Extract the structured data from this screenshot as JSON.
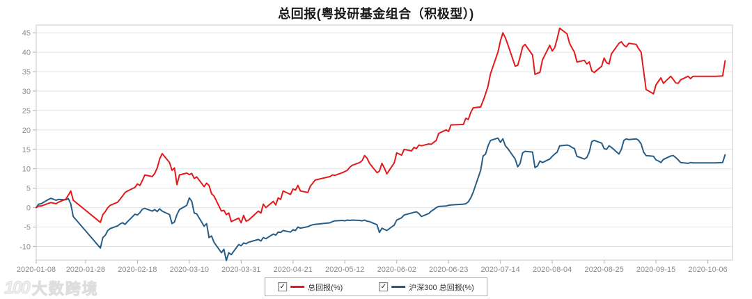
{
  "title": "总回报(粤投研基金组合（积极型）)",
  "watermark": {
    "logo": "100",
    "text": "大数跨境"
  },
  "legend": [
    {
      "label": "总回报(%)",
      "color": "#e31a1c",
      "checked": true,
      "check_glyph": "✓"
    },
    {
      "label": "沪深300 总回报(%)",
      "color": "#265d87",
      "checked": true,
      "check_glyph": "✓"
    }
  ],
  "colors": {
    "plot_border": "#c9c9c9",
    "gridline": "#e2e2e2",
    "tick": "#b0b0b0",
    "axis_label": "#8c8c8c",
    "background": "#ffffff"
  },
  "chart_data": {
    "type": "line",
    "title": "总回报(粤投研基金组合（积极型）)",
    "xlabel": "",
    "ylabel": "",
    "grid": "horizontal-only",
    "legend_position": "bottom-center",
    "x_axis": {
      "kind": "time",
      "start": "2020-01-08",
      "end": "2020-10-16",
      "tick_labels": [
        "2020-01-08",
        "2020-01-28",
        "2020-02-18",
        "2020-03-10",
        "2020-03-31",
        "2020-04-21",
        "2020-05-12",
        "2020-06-02",
        "2020-06-23",
        "2020-07-14",
        "2020-08-04",
        "2020-08-25",
        "2020-09-15",
        "2020-10-06"
      ]
    },
    "y_axis": {
      "min": -13.5,
      "max": 47,
      "ticks": [
        45,
        40,
        35,
        30,
        25,
        20,
        15,
        10,
        5,
        0,
        -5,
        -10
      ]
    },
    "dates": [
      "2020-01-08",
      "2020-01-09",
      "2020-01-10",
      "2020-01-13",
      "2020-01-14",
      "2020-01-16",
      "2020-01-17",
      "2020-01-20",
      "2020-01-21",
      "2020-01-22",
      "2020-01-23",
      "2020-02-03",
      "2020-02-04",
      "2020-02-05",
      "2020-02-06",
      "2020-02-07",
      "2020-02-10",
      "2020-02-11",
      "2020-02-12",
      "2020-02-13",
      "2020-02-14",
      "2020-02-17",
      "2020-02-18",
      "2020-02-19",
      "2020-02-20",
      "2020-02-21",
      "2020-02-24",
      "2020-02-25",
      "2020-02-26",
      "2020-02-27",
      "2020-02-28",
      "2020-03-02",
      "2020-03-03",
      "2020-03-04",
      "2020-03-05",
      "2020-03-06",
      "2020-03-09",
      "2020-03-10",
      "2020-03-11",
      "2020-03-12",
      "2020-03-13",
      "2020-03-16",
      "2020-03-17",
      "2020-03-18",
      "2020-03-19",
      "2020-03-20",
      "2020-03-23",
      "2020-03-24",
      "2020-03-25",
      "2020-03-26",
      "2020-03-27",
      "2020-03-30",
      "2020-03-31",
      "2020-04-01",
      "2020-04-02",
      "2020-04-03",
      "2020-04-07",
      "2020-04-08",
      "2020-04-09",
      "2020-04-10",
      "2020-04-13",
      "2020-04-14",
      "2020-04-15",
      "2020-04-16",
      "2020-04-17",
      "2020-04-20",
      "2020-04-21",
      "2020-04-22",
      "2020-04-23",
      "2020-04-24",
      "2020-04-27",
      "2020-04-28",
      "2020-04-29",
      "2020-04-30",
      "2020-05-06",
      "2020-05-07",
      "2020-05-08",
      "2020-05-11",
      "2020-05-12",
      "2020-05-13",
      "2020-05-14",
      "2020-05-15",
      "2020-05-18",
      "2020-05-19",
      "2020-05-20",
      "2020-05-21",
      "2020-05-22",
      "2020-05-25",
      "2020-05-26",
      "2020-05-27",
      "2020-05-28",
      "2020-05-29",
      "2020-06-01",
      "2020-06-02",
      "2020-06-03",
      "2020-06-04",
      "2020-06-05",
      "2020-06-08",
      "2020-06-09",
      "2020-06-10",
      "2020-06-11",
      "2020-06-12",
      "2020-06-15",
      "2020-06-16",
      "2020-06-17",
      "2020-06-18",
      "2020-06-19",
      "2020-06-22",
      "2020-06-23",
      "2020-06-24",
      "2020-06-29",
      "2020-06-30",
      "2020-07-01",
      "2020-07-02",
      "2020-07-03",
      "2020-07-06",
      "2020-07-07",
      "2020-07-08",
      "2020-07-09",
      "2020-07-10",
      "2020-07-13",
      "2020-07-14",
      "2020-07-15",
      "2020-07-16",
      "2020-07-17",
      "2020-07-20",
      "2020-07-21",
      "2020-07-22",
      "2020-07-23",
      "2020-07-24",
      "2020-07-27",
      "2020-07-28",
      "2020-07-29",
      "2020-07-30",
      "2020-07-31",
      "2020-08-03",
      "2020-08-04",
      "2020-08-05",
      "2020-08-06",
      "2020-08-07",
      "2020-08-10",
      "2020-08-11",
      "2020-08-12",
      "2020-08-13",
      "2020-08-14",
      "2020-08-17",
      "2020-08-18",
      "2020-08-19",
      "2020-08-20",
      "2020-08-21",
      "2020-08-24",
      "2020-08-25",
      "2020-08-26",
      "2020-08-27",
      "2020-08-28",
      "2020-08-31",
      "2020-09-01",
      "2020-09-02",
      "2020-09-03",
      "2020-09-04",
      "2020-09-07",
      "2020-09-08",
      "2020-09-09",
      "2020-09-10",
      "2020-09-11",
      "2020-09-14",
      "2020-09-15",
      "2020-09-16",
      "2020-09-17",
      "2020-09-18",
      "2020-09-21",
      "2020-09-22",
      "2020-09-23",
      "2020-09-24",
      "2020-09-25",
      "2020-09-28",
      "2020-09-29",
      "2020-09-30",
      "2020-10-09",
      "2020-10-12",
      "2020-10-13"
    ],
    "series": [
      {
        "name": "总回报(%)",
        "color": "#e31a1c",
        "width": 2,
        "values": [
          0.0,
          0.4,
          0.4,
          1.1,
          1.3,
          1.0,
          1.4,
          2.2,
          3.2,
          4.3,
          1.9,
          -3.8,
          -1.8,
          -1.0,
          0.0,
          0.6,
          1.4,
          2.2,
          3.0,
          3.9,
          4.3,
          5.2,
          6.1,
          5.7,
          7.0,
          8.4,
          8.0,
          8.8,
          10.2,
          12.5,
          13.9,
          11.6,
          9.6,
          10.2,
          5.9,
          8.4,
          8.9,
          8.5,
          8.8,
          7.5,
          7.9,
          5.4,
          6.3,
          5.7,
          3.6,
          3.0,
          -0.9,
          -0.7,
          -1.8,
          -1.4,
          -3.6,
          -2.7,
          -3.9,
          -2.0,
          -3.5,
          -3.2,
          -0.9,
          -1.4,
          0.9,
          0.0,
          1.6,
          0.7,
          2.5,
          2.1,
          4.3,
          3.4,
          4.8,
          4.5,
          5.7,
          4.3,
          3.9,
          5.5,
          6.3,
          7.1,
          8.0,
          8.4,
          8.3,
          9.0,
          9.3,
          9.6,
          10.4,
          10.9,
          11.6,
          12.1,
          13.4,
          12.7,
          11.4,
          9.0,
          9.4,
          11.4,
          10.2,
          8.7,
          11.5,
          14.1,
          13.8,
          13.5,
          15.0,
          14.6,
          15.5,
          15.2,
          16.1,
          15.9,
          16.4,
          16.3,
          16.8,
          17.3,
          19.1,
          20.0,
          19.6,
          21.3,
          21.4,
          23.0,
          22.7,
          24.5,
          25.7,
          25.9,
          27.5,
          29.3,
          31.3,
          34.5,
          40.0,
          42.9,
          45.0,
          43.7,
          42.0,
          36.4,
          36.6,
          38.8,
          41.4,
          42.0,
          39.3,
          34.3,
          34.6,
          34.8,
          38.0,
          41.8,
          40.3,
          41.2,
          43.5,
          46.2,
          44.7,
          42.3,
          41.1,
          40.0,
          37.5,
          37.9,
          37.0,
          37.5,
          35.2,
          34.8,
          36.4,
          38.5,
          37.3,
          37.0,
          39.6,
          42.3,
          42.7,
          41.8,
          41.4,
          42.3,
          42.0,
          40.9,
          40.0,
          35.2,
          30.4,
          29.3,
          31.6,
          32.5,
          33.4,
          32.0,
          33.8,
          33.0,
          32.1,
          32.0,
          32.9,
          33.8,
          33.2,
          33.8,
          33.8,
          33.9,
          37.8
        ]
      },
      {
        "name": "沪深300 总回报(%)",
        "color": "#265d87",
        "width": 2,
        "values": [
          0.0,
          0.9,
          1.0,
          2.1,
          2.4,
          1.9,
          2.1,
          2.0,
          2.3,
          1.0,
          -2.3,
          -10.4,
          -7.7,
          -7.1,
          -5.9,
          -5.4,
          -4.7,
          -4.2,
          -3.9,
          -4.3,
          -3.6,
          -1.7,
          -1.9,
          -1.3,
          -0.4,
          -0.2,
          -0.9,
          -0.5,
          -1.0,
          -0.3,
          -0.9,
          -1.8,
          -4.1,
          -3.7,
          -1.8,
          -0.5,
          0.6,
          2.5,
          1.6,
          -1.4,
          -1.6,
          -4.8,
          -4.1,
          -7.7,
          -7.3,
          -8.9,
          -11.6,
          -10.7,
          -13.6,
          -11.6,
          -12.1,
          -9.5,
          -9.8,
          -9.1,
          -9.3,
          -8.9,
          -8.2,
          -8.6,
          -7.7,
          -8.0,
          -6.8,
          -7.1,
          -6.3,
          -6.4,
          -5.9,
          -6.3,
          -5.7,
          -5.9,
          -5.0,
          -5.3,
          -4.9,
          -4.6,
          -4.4,
          -4.3,
          -3.9,
          -3.6,
          -3.4,
          -3.3,
          -3.4,
          -3.2,
          -3.3,
          -3.2,
          -3.3,
          -3.4,
          -3.2,
          -3.5,
          -3.6,
          -4.4,
          -6.4,
          -5.3,
          -5.6,
          -5.9,
          -4.5,
          -3.2,
          -2.9,
          -2.6,
          -1.9,
          -1.4,
          -1.2,
          -1.1,
          -1.5,
          -2.3,
          -1.5,
          -0.9,
          -0.5,
          0.0,
          0.3,
          0.4,
          0.6,
          0.7,
          0.9,
          1.0,
          1.5,
          2.5,
          4.0,
          9.6,
          13.3,
          13.8,
          15.9,
          17.3,
          17.9,
          16.8,
          17.7,
          15.9,
          15.2,
          12.5,
          10.5,
          11.4,
          14.1,
          14.5,
          14.3,
          10.3,
          10.7,
          12.0,
          11.6,
          12.5,
          13.2,
          13.8,
          14.3,
          15.9,
          16.1,
          15.9,
          15.5,
          15.2,
          13.2,
          12.5,
          12.9,
          14.3,
          17.0,
          17.3,
          16.6,
          15.2,
          15.0,
          15.9,
          15.5,
          13.8,
          15.0,
          17.3,
          17.7,
          17.5,
          17.7,
          17.3,
          16.4,
          14.3,
          13.4,
          13.2,
          12.3,
          12.0,
          11.6,
          12.4,
          13.3,
          13.4,
          12.9,
          12.3,
          11.6,
          11.4,
          11.6,
          11.5,
          11.5,
          11.6,
          13.6
        ]
      }
    ]
  }
}
